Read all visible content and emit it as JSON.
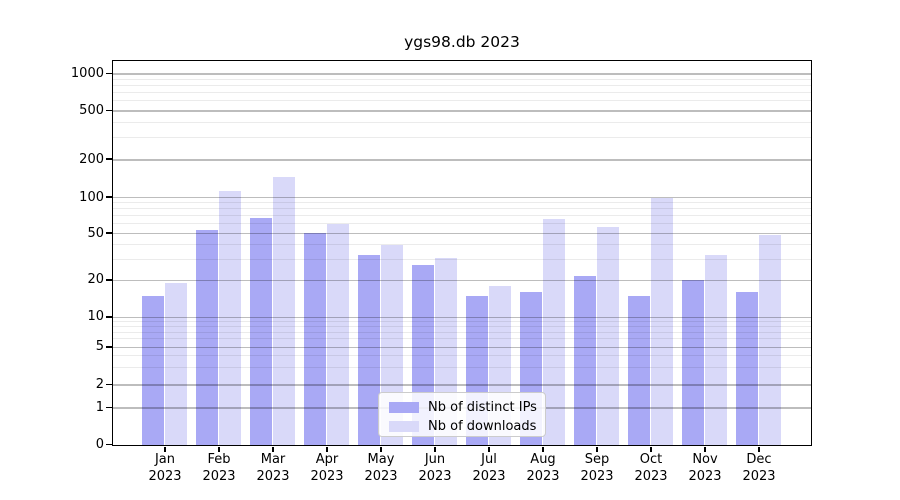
{
  "chart_data": {
    "type": "bar",
    "title": "ygs98.db 2023",
    "xlabel": "",
    "ylabel": "",
    "yscale": "symlog",
    "ylim": [
      0,
      1100
    ],
    "grid": true,
    "legend_position": "lower center",
    "x_tick_year": "2023",
    "months": [
      "Jan",
      "Feb",
      "Mar",
      "Apr",
      "May",
      "Jun",
      "Jul",
      "Aug",
      "Sep",
      "Oct",
      "Nov",
      "Dec"
    ],
    "categories": [
      "Jan 2023",
      "Feb 2023",
      "Mar 2023",
      "Apr 2023",
      "May 2023",
      "Jun 2023",
      "Jul 2023",
      "Aug 2023",
      "Sep 2023",
      "Oct 2023",
      "Nov 2023",
      "Dec 2023"
    ],
    "series": [
      {
        "name": "Nb of distinct IPs",
        "color": "#a9a9f5",
        "values": [
          15,
          54,
          67,
          51,
          33,
          27,
          15,
          16,
          22,
          15,
          20,
          16
        ]
      },
      {
        "name": "Nb of downloads",
        "color": "#d9d9f9",
        "values": [
          19,
          114,
          146,
          60,
          40,
          31,
          18,
          66,
          57,
          100,
          33,
          49
        ]
      }
    ],
    "y_major_ticks": [
      0,
      1,
      2,
      5,
      10,
      20,
      50,
      100,
      200,
      500,
      1000
    ],
    "y_minor_ticks": [
      3,
      4,
      6,
      7,
      8,
      9,
      30,
      40,
      60,
      70,
      80,
      90,
      300,
      400,
      600,
      700,
      800,
      900
    ],
    "colors": {
      "distinct_ips": "#a9a9f5",
      "downloads": "#d9d9f9",
      "grid_major": "rgba(0,0,0,0.26)",
      "grid_minor": "rgba(0,0,0,0.08)",
      "axis": "#000000"
    }
  }
}
